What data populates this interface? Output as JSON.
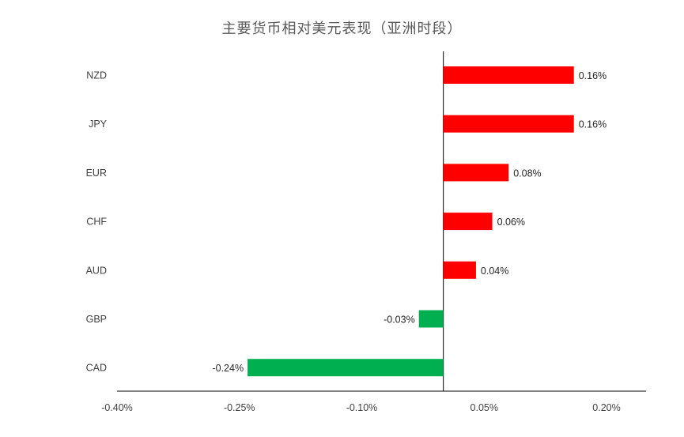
{
  "chart_data": {
    "type": "bar",
    "orientation": "horizontal",
    "title": "主要货币相对美元表现（亚洲时段）",
    "categories": [
      "NZD",
      "JPY",
      "EUR",
      "CHF",
      "AUD",
      "GBP",
      "CAD"
    ],
    "values": [
      0.16,
      0.16,
      0.08,
      0.06,
      0.04,
      -0.03,
      -0.24
    ],
    "value_labels": [
      "0.16%",
      "0.16%",
      "0.08%",
      "0.06%",
      "0.04%",
      "-0.03%",
      "-0.24%"
    ],
    "unit": "%",
    "xlim": [
      -0.4,
      0.25
    ],
    "xticks": [
      -0.4,
      -0.25,
      -0.1,
      0.05,
      0.2
    ],
    "xtick_labels": [
      "-0.40%",
      "-0.25%",
      "-0.10%",
      "0.05%",
      "0.20%"
    ],
    "colors": {
      "positive": "#ff0000",
      "negative": "#00b050",
      "axis": "#000000"
    },
    "grid": false,
    "legend": "none"
  }
}
